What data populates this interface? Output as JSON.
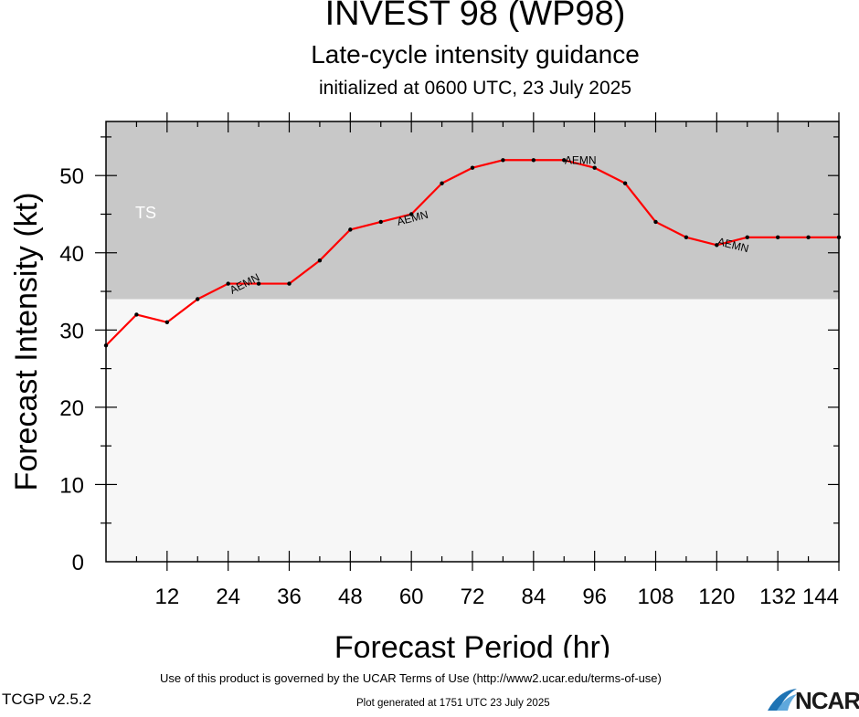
{
  "titles": {
    "main": "INVEST 98 (WP98)",
    "sub": "Late-cycle intensity guidance",
    "init": "initialized at 0600 UTC, 23 July 2025"
  },
  "footer": {
    "terms": "Use of this product is governed by the UCAR Terms of Use (http://www2.ucar.edu/terms-of-use)",
    "version": "TCGP v2.5.2",
    "generated": "Plot generated at 1751 UTC   23 July 2025",
    "logo_text": "NCAR"
  },
  "colors": {
    "ts_band": "#c8c8c8",
    "below_band": "#f7f7f7",
    "series_line": "#ff0000",
    "logo_swoosh": "#1e73b4"
  },
  "chart_data": {
    "type": "line",
    "xlabel": "Forecast Period (hr)",
    "ylabel": "Forecast Intensity (kt)",
    "xlim": [
      0,
      144
    ],
    "ylim": [
      0,
      57
    ],
    "xticks": [
      12,
      24,
      36,
      48,
      60,
      72,
      84,
      96,
      108,
      120,
      132,
      144
    ],
    "yticks": [
      0,
      10,
      20,
      30,
      40,
      50
    ],
    "bands": [
      {
        "label": "TS",
        "from": 34,
        "to": 57
      }
    ],
    "series": [
      {
        "name": "AEMN",
        "x": [
          0,
          6,
          12,
          18,
          24,
          30,
          36,
          42,
          48,
          54,
          60,
          66,
          72,
          78,
          84,
          90,
          96,
          102,
          108,
          114,
          120,
          126,
          132,
          138,
          144
        ],
        "y": [
          28,
          32,
          31,
          34,
          36,
          36,
          36,
          39,
          43,
          44,
          45,
          49,
          51,
          52,
          52,
          52,
          51,
          49,
          44,
          42,
          41,
          42,
          42,
          42,
          42
        ],
        "label_x": [
          24,
          57,
          90,
          120
        ]
      }
    ]
  }
}
